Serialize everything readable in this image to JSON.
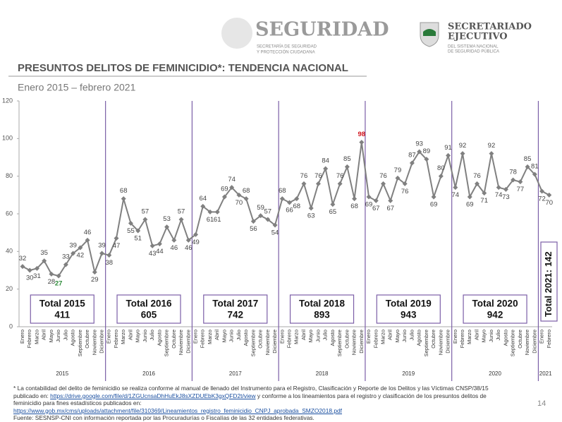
{
  "header": {
    "brand": "SEGURIDAD",
    "brand_sub": [
      "SECRETARÍA DE SEGURIDAD",
      "Y PROTECCIÓN CIUDADANA"
    ],
    "org": [
      "SECRETARIADO",
      "EJECUTIVO"
    ],
    "org_sub": [
      "DEL SISTEMA NACIONAL",
      "DE SEGURIDAD PÚBLICA"
    ]
  },
  "chart_data": {
    "type": "line",
    "title": "PRESUNTOS DELITOS DE FEMINICIDIO*: TENDENCIA NACIONAL",
    "subtitle": "Enero 2015 – febrero 2021",
    "categories": [
      "Enero",
      "Febrero",
      "Marzo",
      "Abril",
      "Mayo",
      "Junio",
      "Julio",
      "Agosto",
      "Septiembre",
      "Octubre",
      "Noviembre",
      "Diciembre",
      "Enero",
      "Febrero",
      "Marzo",
      "Abril",
      "Mayo",
      "Junio",
      "Julio",
      "Agosto",
      "Septiembre",
      "Octubre",
      "Noviembre",
      "Diciembre",
      "Enero",
      "Febrero",
      "Marzo",
      "Abril",
      "Mayo",
      "Junio",
      "Julio",
      "Agosto",
      "Septiembre",
      "Octubre",
      "Noviembre",
      "Diciembre",
      "Enero",
      "Febrero",
      "Marzo",
      "Abril",
      "Mayo",
      "Junio",
      "Julio",
      "Agosto",
      "Septiembre",
      "Octubre",
      "Noviembre",
      "Diciembre",
      "Enero",
      "Febrero",
      "Marzo",
      "Abril",
      "Mayo",
      "Junio",
      "Julio",
      "Agosto",
      "Septiembre",
      "Octubre",
      "Noviembre",
      "Diciembre",
      "Enero",
      "Febrero",
      "Marzo",
      "Abril",
      "Mayo",
      "Junio",
      "Julio",
      "Agosto",
      "Septiembre",
      "Octubre",
      "Noviembre",
      "Diciembre",
      "Enero",
      "Febrero"
    ],
    "years": [
      "2015",
      "2016",
      "2017",
      "2018",
      "2019",
      "2020",
      "2021"
    ],
    "values": [
      32,
      30,
      31,
      35,
      28,
      27,
      33,
      39,
      42,
      46,
      29,
      39,
      38,
      47,
      68,
      55,
      51,
      57,
      43,
      44,
      53,
      46,
      57,
      46,
      49,
      64,
      61,
      61,
      69,
      74,
      70,
      68,
      56,
      59,
      57,
      54,
      68,
      66,
      68,
      76,
      63,
      76,
      84,
      65,
      76,
      85,
      68,
      98,
      69,
      67,
      76,
      67,
      79,
      76,
      87,
      93,
      89,
      69,
      80,
      91,
      74,
      92,
      69,
      76,
      71,
      92,
      74,
      73,
      78,
      77,
      85,
      81,
      72,
      70
    ],
    "label_colors": {
      "27": "#2e8b3a",
      "98": "#d0101a"
    },
    "color": "#808080",
    "ylim": [
      0,
      120
    ],
    "yticks": [
      0,
      20,
      40,
      60,
      80,
      100,
      120
    ],
    "totals": [
      {
        "label": "Total 2015",
        "value": 411
      },
      {
        "label": "Total 2016",
        "value": 605
      },
      {
        "label": "Total 2017",
        "value": 742
      },
      {
        "label": "Total 2018",
        "value": 893
      },
      {
        "label": "Total 2019",
        "value": 943
      },
      {
        "label": "Total 2020",
        "value": 942
      },
      {
        "label": "Total 2021:",
        "value": 142
      }
    ]
  },
  "footnote": {
    "text1": "* La contabilidad del delito de feminicidio se realiza conforme al manual de llenado del Instrumento para el Registro, Clasificación y Reporte de los Delitos y las Víctimas CNSP/38/15 publicado en: ",
    "link1": "https://drive.google.com/file/d/1ZGUcnsaDhHuEkJ8sXZDUEbK3gxQFD2t/view",
    "text2": " y conforme a los lineamientos para el registro y clasificación de los presuntos delitos de feminicidio para fines estadísticos publicados en:",
    "link2": "https://www.gob.mx/cms/uploads/attachment/file/310369/Lineamientos_registro_feminicidio_CNPJ_aprobada_SMZO2018.pdf",
    "source": "Fuente: SESNSP-CNI con información reportada por las Procuradurías o Fiscalías de las 32 entidades federativas.",
    "page": "14"
  }
}
